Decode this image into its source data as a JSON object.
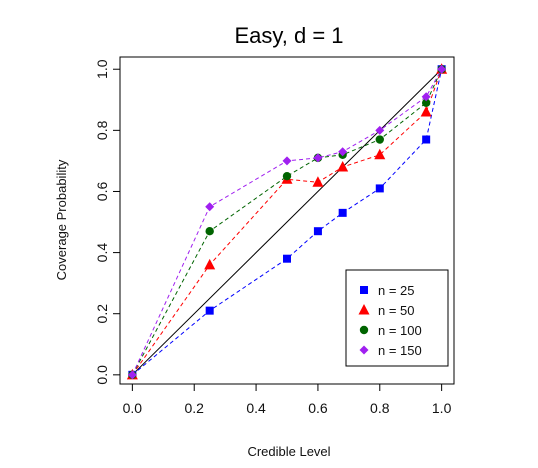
{
  "chart_data": {
    "type": "line",
    "title": "Easy, d = 1",
    "xlabel": "Credible Level",
    "ylabel": "Coverage Probability",
    "xlim": [
      0,
      1
    ],
    "ylim": [
      0,
      1
    ],
    "xticks": [
      "0.0",
      "0.2",
      "0.4",
      "0.6",
      "0.8",
      "1.0"
    ],
    "yticks": [
      "0.0",
      "0.2",
      "0.4",
      "0.6",
      "0.8",
      "1.0"
    ],
    "x": [
      0.0,
      0.25,
      0.5,
      0.6,
      0.68,
      0.8,
      0.95,
      1.0
    ],
    "reference_line": {
      "from": [
        0,
        0
      ],
      "to": [
        1,
        1
      ],
      "color": "#000000"
    },
    "legend_position": "bottom-right",
    "grid": false,
    "series": [
      {
        "name": "n = 25",
        "values": [
          0.0,
          0.21,
          0.38,
          0.47,
          0.53,
          0.61,
          0.77,
          1.0
        ],
        "color": "#0000ff",
        "marker": "square"
      },
      {
        "name": "n = 50",
        "values": [
          0.0,
          0.36,
          0.64,
          0.63,
          0.68,
          0.72,
          0.86,
          1.0
        ],
        "color": "#ff0000",
        "marker": "triangle"
      },
      {
        "name": "n = 100",
        "values": [
          0.0,
          0.47,
          0.65,
          0.71,
          0.72,
          0.77,
          0.89,
          1.0
        ],
        "color": "#006400",
        "marker": "circle"
      },
      {
        "name": "n = 150",
        "values": [
          0.0,
          0.55,
          0.7,
          0.71,
          0.73,
          0.8,
          0.91,
          1.0
        ],
        "color": "#a020f0",
        "marker": "diamond"
      }
    ]
  }
}
